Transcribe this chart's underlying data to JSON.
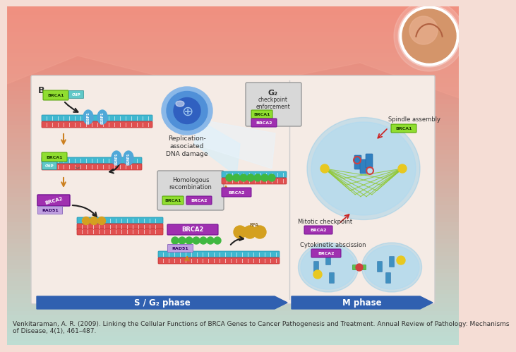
{
  "citation_text": "Venkitaraman, A. R. (2009). Linking the Cellular Functions of BRCA Genes to Cancer Pathogenesis and Treatment. Annual Review of Pathology: Mechanisms\nof Disease, 4(1), 461–487.",
  "citation_fontsize": 6.5,
  "s_phase_label": "S / G₂ phase",
  "m_phase_label": "M phase",
  "brca1_color": "#90dd30",
  "brca1_text_color": "#1a3a00",
  "brca2_color": "#a030b0",
  "brca2_text_color": "#ffffff",
  "ctip_color": "#60c8c8",
  "ssbp1_color": "#50a8d8",
  "dna_top_color": "#40b8d0",
  "dna_bot_color": "#e05050",
  "rad51_color": "#40b840",
  "rpa_color": "#d4a020",
  "phase_arrow_color": "#3060b0",
  "phase_label_color": "#ffffff",
  "panel_bg": "#f5ebe5",
  "panel_border": "#cccccc",
  "box_bg": "#d8d8d8",
  "box_border": "#aaaaaa",
  "orange_arrow": "#cc8020",
  "black_arrow": "#202020",
  "red_arrow": "#cc2020",
  "cell_outer_color": "#88c8e8",
  "cell_inner_color": "#b0daf0",
  "spindle_color": "#90c830",
  "chromosome_color": "#3080c0",
  "centrosome_color": "#e8c820",
  "kinetochore_color": "#d04040",
  "bg_gradient_top": "#ef8070",
  "bg_gradient_mid": "#f0c0b0",
  "bg_gradient_bot": "#f5ddd5"
}
